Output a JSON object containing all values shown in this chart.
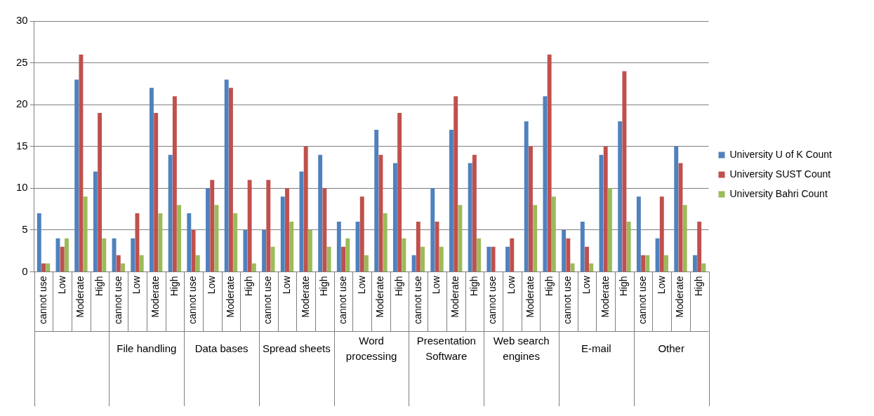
{
  "chart_data": {
    "type": "bar",
    "categories": [
      "cannot use",
      "Low",
      "Moderate",
      "High",
      "cannot use",
      "Low",
      "Moderate",
      "High",
      "cannot use",
      "Low",
      "Moderate",
      "High",
      "cannot use",
      "Low",
      "Moderate",
      "High",
      "cannot use",
      "Low",
      "Moderate",
      "High",
      "cannot use",
      "Low",
      "Moderate",
      "High",
      "cannot use",
      "Low",
      "Moderate",
      "High",
      "cannot use",
      "Low",
      "Moderate",
      "High",
      "cannot use",
      "Low",
      "Moderate",
      "High"
    ],
    "series": [
      {
        "name": "University U of K Count",
        "color": "#4f81bd",
        "values": [
          7,
          4,
          23,
          12,
          4,
          4,
          22,
          14,
          7,
          10,
          23,
          5,
          5,
          9,
          12,
          14,
          6,
          6,
          17,
          13,
          2,
          10,
          17,
          13,
          3,
          3,
          18,
          21,
          5,
          6,
          14,
          18,
          9,
          4,
          15,
          2
        ]
      },
      {
        "name": "University SUST Count",
        "color": "#c0504d",
        "values": [
          1,
          3,
          26,
          19,
          2,
          7,
          19,
          21,
          5,
          11,
          22,
          11,
          11,
          10,
          15,
          10,
          3,
          9,
          14,
          19,
          6,
          6,
          21,
          14,
          3,
          4,
          15,
          26,
          4,
          3,
          15,
          24,
          2,
          9,
          13,
          6
        ]
      },
      {
        "name": "University Bahri Count",
        "color": "#9bbb59",
        "values": [
          1,
          4,
          9,
          4,
          1,
          2,
          7,
          8,
          2,
          8,
          7,
          1,
          3,
          6,
          5,
          3,
          4,
          2,
          7,
          4,
          3,
          3,
          8,
          4,
          0,
          0,
          8,
          9,
          1,
          1,
          10,
          6,
          2,
          2,
          8,
          1
        ]
      }
    ],
    "annotations": [
      "File handling",
      "Data bases",
      "Spread sheets",
      "Word processing",
      "Presentation Software",
      "Web search engines",
      "E-mail",
      "Other"
    ],
    "ylim": [
      0,
      30
    ],
    "yticks": [
      0,
      5,
      10,
      15,
      20,
      25,
      30
    ],
    "grid": "y",
    "legend": "right"
  }
}
